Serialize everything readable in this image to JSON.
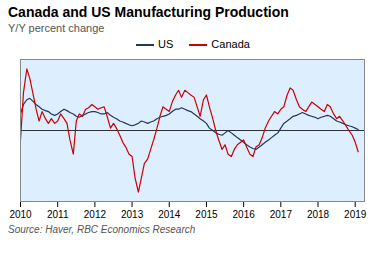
{
  "chart_data": {
    "type": "line",
    "title": "Canada and US Manufacturing Production",
    "subtitle": "Y/Y percent change",
    "source": "Source: Haver, RBC Economics Research",
    "legend": "top",
    "tick_labels": "x",
    "xlim": [
      2010.0,
      2019.25
    ],
    "ylim": [
      -15,
      15
    ],
    "xticks": [
      2010,
      2011,
      2012,
      2013,
      2014,
      2015,
      2016,
      2017,
      2018,
      2019
    ],
    "x": [
      2010.0,
      2010.08,
      2010.17,
      2010.25,
      2010.33,
      2010.42,
      2010.5,
      2010.58,
      2010.67,
      2010.75,
      2010.83,
      2010.92,
      2011.0,
      2011.08,
      2011.17,
      2011.25,
      2011.33,
      2011.42,
      2011.5,
      2011.58,
      2011.67,
      2011.75,
      2011.83,
      2011.92,
      2012.0,
      2012.08,
      2012.17,
      2012.25,
      2012.33,
      2012.42,
      2012.5,
      2012.58,
      2012.67,
      2012.75,
      2012.83,
      2012.92,
      2013.0,
      2013.08,
      2013.17,
      2013.25,
      2013.33,
      2013.42,
      2013.5,
      2013.58,
      2013.67,
      2013.75,
      2013.83,
      2013.92,
      2014.0,
      2014.08,
      2014.17,
      2014.25,
      2014.33,
      2014.42,
      2014.5,
      2014.58,
      2014.67,
      2014.75,
      2014.83,
      2014.92,
      2015.0,
      2015.08,
      2015.17,
      2015.25,
      2015.33,
      2015.42,
      2015.5,
      2015.58,
      2015.67,
      2015.75,
      2015.83,
      2015.92,
      2016.0,
      2016.08,
      2016.17,
      2016.25,
      2016.33,
      2016.42,
      2016.5,
      2016.58,
      2016.67,
      2016.75,
      2016.83,
      2016.92,
      2017.0,
      2017.08,
      2017.17,
      2017.25,
      2017.33,
      2017.42,
      2017.5,
      2017.58,
      2017.67,
      2017.75,
      2017.83,
      2017.92,
      2018.0,
      2018.08,
      2018.17,
      2018.25,
      2018.33,
      2018.42,
      2018.5,
      2018.58,
      2018.67,
      2018.75,
      2018.83,
      2018.92,
      2019.0,
      2019.08
    ],
    "series": [
      {
        "name": "US",
        "color": "#1f3864",
        "values": [
          3.5,
          5.5,
          6.5,
          6.8,
          6.2,
          5.5,
          5.0,
          4.5,
          4.2,
          4.0,
          3.5,
          3.2,
          3.5,
          4.0,
          4.5,
          4.2,
          3.8,
          3.5,
          3.0,
          2.8,
          3.2,
          3.5,
          3.8,
          4.0,
          4.0,
          3.8,
          3.5,
          3.5,
          3.8,
          3.2,
          2.8,
          2.5,
          2.0,
          1.8,
          1.5,
          1.2,
          1.0,
          1.2,
          1.5,
          2.0,
          1.8,
          1.5,
          1.8,
          2.0,
          2.5,
          2.8,
          3.0,
          3.2,
          3.5,
          4.0,
          4.5,
          4.5,
          4.8,
          4.5,
          4.2,
          4.0,
          3.5,
          3.0,
          2.5,
          2.0,
          1.5,
          0.5,
          0.0,
          -0.5,
          -0.8,
          -1.0,
          -0.5,
          0.0,
          -0.5,
          -1.0,
          -1.5,
          -2.0,
          -2.5,
          -3.0,
          -3.5,
          -3.8,
          -4.0,
          -3.5,
          -3.0,
          -2.5,
          -2.0,
          -1.5,
          -1.0,
          -0.5,
          0.5,
          1.5,
          2.0,
          2.5,
          3.0,
          3.2,
          3.5,
          3.8,
          3.5,
          3.2,
          3.0,
          2.8,
          2.5,
          2.8,
          3.0,
          3.2,
          3.0,
          2.5,
          2.0,
          1.8,
          1.5,
          1.2,
          1.0,
          0.8,
          0.5,
          0.2
        ]
      },
      {
        "name": "Canada",
        "color": "#cc0000",
        "values": [
          -2.0,
          8.0,
          13.0,
          11.0,
          8.0,
          4.5,
          2.0,
          4.0,
          2.5,
          1.5,
          2.5,
          1.5,
          2.0,
          3.5,
          2.5,
          1.5,
          -2.0,
          -5.0,
          2.0,
          3.5,
          3.0,
          4.5,
          4.8,
          5.5,
          5.0,
          4.5,
          4.8,
          5.0,
          3.0,
          0.5,
          1.5,
          0.5,
          -1.0,
          -2.5,
          -3.5,
          -5.0,
          -5.5,
          -10.0,
          -13.0,
          -10.0,
          -7.0,
          -6.0,
          -4.0,
          -2.0,
          0.5,
          3.0,
          5.0,
          4.5,
          4.0,
          6.0,
          7.5,
          8.5,
          7.0,
          8.5,
          8.0,
          7.5,
          7.0,
          5.0,
          3.0,
          6.5,
          7.5,
          5.0,
          2.5,
          0.0,
          -2.0,
          -4.0,
          -3.0,
          -5.0,
          -5.5,
          -4.0,
          -3.0,
          -2.5,
          -2.0,
          -3.5,
          -5.0,
          -5.5,
          -3.5,
          -3.0,
          -1.5,
          0.5,
          2.0,
          3.0,
          4.0,
          3.5,
          4.5,
          5.0,
          7.5,
          9.0,
          8.5,
          6.5,
          5.0,
          4.5,
          4.0,
          5.0,
          6.0,
          5.5,
          5.0,
          4.5,
          4.0,
          5.5,
          5.0,
          3.5,
          2.5,
          3.0,
          2.0,
          1.0,
          0.0,
          -1.0,
          -2.5,
          -4.5
        ]
      }
    ]
  }
}
